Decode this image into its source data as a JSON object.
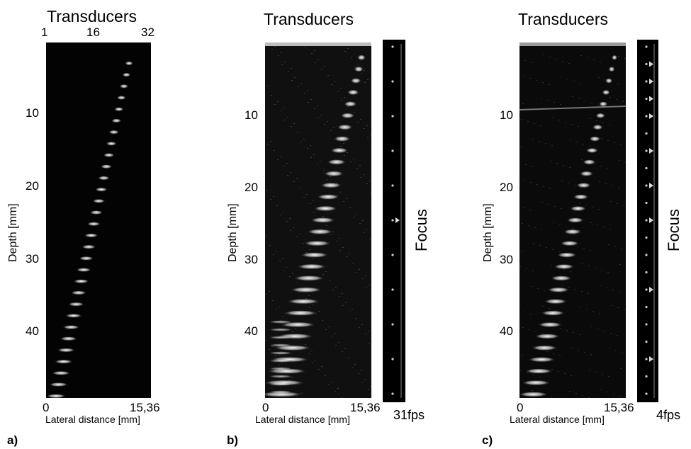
{
  "panels": [
    {
      "letter": "a)",
      "title": "Transducers",
      "top_ticks": [
        "1",
        "16",
        "32"
      ],
      "depth_ticks": [
        "10",
        "20",
        "30",
        "40"
      ],
      "depth_label": "Depth [mm]",
      "x_ticks": [
        "0",
        "15,36"
      ],
      "x_label": "Lateral distance [mm]",
      "focus_label": "",
      "fps": ""
    },
    {
      "letter": "b)",
      "title": "Transducers",
      "top_ticks": [],
      "depth_ticks": [
        "10",
        "20",
        "30",
        "40"
      ],
      "depth_label": "Depth [mm]",
      "x_ticks": [
        "0",
        "15,36"
      ],
      "x_label": "Lateral distance [mm]",
      "focus_label": "Focus",
      "fps": "31fps"
    },
    {
      "letter": "c)",
      "title": "Transducers",
      "top_ticks": [],
      "depth_ticks": [
        "10",
        "20",
        "30",
        "40"
      ],
      "depth_label": "Depth [mm]",
      "x_ticks": [
        "0",
        "15,36"
      ],
      "x_label": "Lateral distance [mm]",
      "focus_label": "Focus",
      "fps": "4fps"
    }
  ],
  "colors": {
    "background": "#ffffff",
    "image_bg": "#030303",
    "echo": "#ffffff"
  }
}
